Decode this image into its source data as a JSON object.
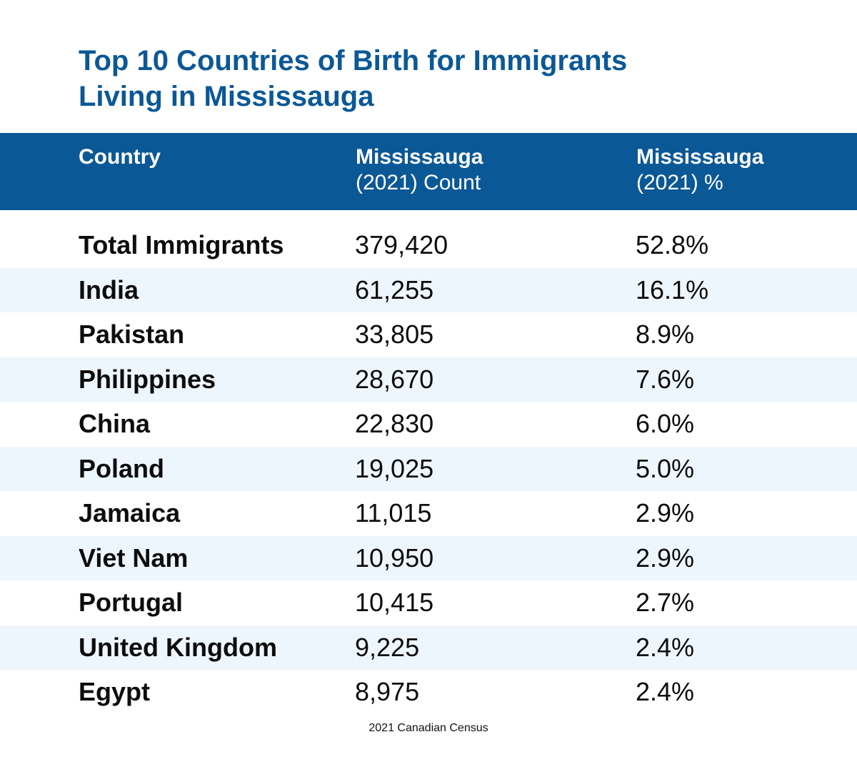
{
  "title": {
    "line1": "Top 10 Countries of Birth for Immigrants",
    "line2": "Living in Mississauga"
  },
  "colors": {
    "accent": "#0b5896",
    "alt_row": "#eef6fd",
    "text": "#0d0d0d"
  },
  "header": {
    "country": "Country",
    "count_line1": "Mississauga",
    "count_line2": "(2021) Count",
    "pct_line1": "Mississauga",
    "pct_line2": "(2021) %"
  },
  "chart_data": {
    "type": "table",
    "columns": [
      "Country",
      "Mississauga (2021) Count",
      "Mississauga (2021) %"
    ],
    "rows": [
      {
        "country": "Total Immigrants",
        "count": "379,420",
        "pct": "52.8%"
      },
      {
        "country": "India",
        "count": "61,255",
        "pct": "16.1%"
      },
      {
        "country": "Pakistan",
        "count": "33,805",
        "pct": "8.9%"
      },
      {
        "country": "Philippines",
        "count": "28,670",
        "pct": "7.6%"
      },
      {
        "country": "China",
        "count": "22,830",
        "pct": "6.0%"
      },
      {
        "country": "Poland",
        "count": "19,025",
        "pct": "5.0%"
      },
      {
        "country": "Jamaica",
        "count": "11,015",
        "pct": "2.9%"
      },
      {
        "country": "Viet Nam",
        "count": "10,950",
        "pct": "2.9%"
      },
      {
        "country": "Portugal",
        "count": "10,415",
        "pct": "2.7%"
      },
      {
        "country": "United Kingdom",
        "count": "9,225",
        "pct": "2.4%"
      },
      {
        "country": "Egypt",
        "count": "8,975",
        "pct": "2.4%"
      }
    ]
  },
  "source": "2021 Canadian Census"
}
